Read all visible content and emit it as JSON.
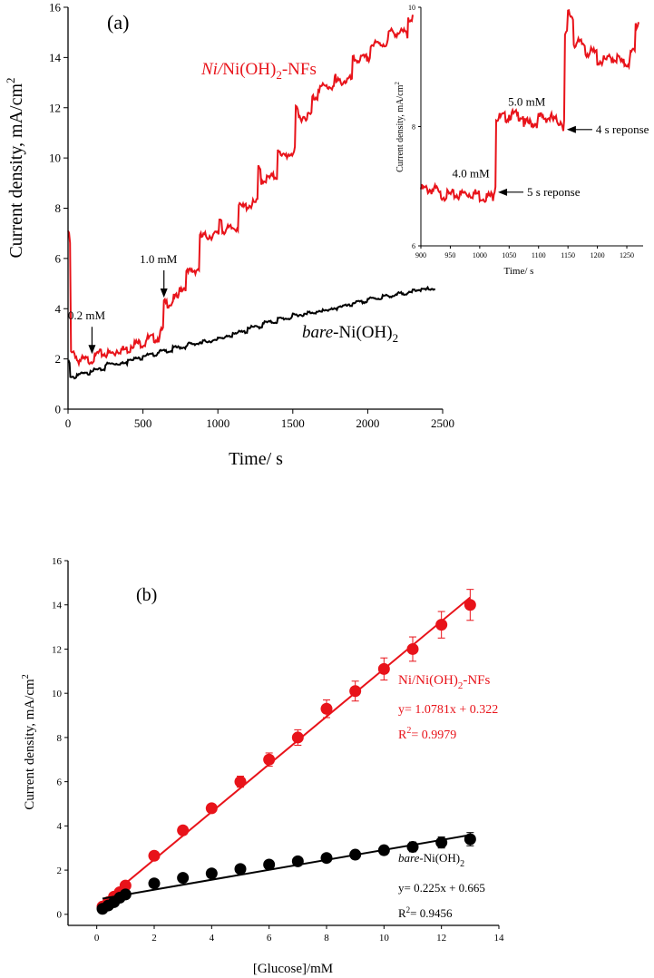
{
  "colors": {
    "red": "#e8131a",
    "black": "#000000"
  },
  "chart_data": [
    {
      "type": "line",
      "panel_label": "(a)",
      "xlabel": "Time/ s",
      "ylabel": "Current density, mA/cm",
      "ylabel_sup": "2",
      "xlim": [
        0,
        2500
      ],
      "ylim": [
        0,
        16
      ],
      "xticks": [
        0,
        500,
        1000,
        1500,
        2000,
        2500
      ],
      "yticks": [
        0,
        2,
        4,
        6,
        8,
        10,
        12,
        14,
        16
      ],
      "grid": false,
      "series": [
        {
          "name_italic": "Ni/",
          "name_rest": "Ni(OH)",
          "name_sub": "2",
          "name_tail": "-NFs",
          "color": "#e8131a",
          "steps": [
            [
              0,
              7.1
            ],
            [
              20,
              2.2
            ],
            [
              60,
              1.95
            ],
            [
              160,
              2.0
            ],
            [
              190,
              2.2
            ],
            [
              320,
              2.35
            ],
            [
              420,
              2.6
            ],
            [
              520,
              2.8
            ],
            [
              610,
              3.0
            ],
            [
              640,
              4.2
            ],
            [
              700,
              4.4
            ],
            [
              745,
              4.8
            ],
            [
              790,
              5.4
            ],
            [
              880,
              6.85
            ],
            [
              1010,
              7.6
            ],
            [
              1030,
              7.1
            ],
            [
              1140,
              8.2
            ],
            [
              1150,
              8.0
            ],
            [
              1270,
              9.6
            ],
            [
              1290,
              9.1
            ],
            [
              1400,
              10.4
            ],
            [
              1420,
              10.0
            ],
            [
              1520,
              11.9
            ],
            [
              1540,
              11.6
            ],
            [
              1630,
              12.4
            ],
            [
              1670,
              12.8
            ],
            [
              1780,
              13.2
            ],
            [
              1790,
              13.0
            ],
            [
              1900,
              13.9
            ],
            [
              2020,
              14.5
            ],
            [
              2140,
              15.0
            ],
            [
              2260,
              14.8
            ],
            [
              2270,
              15.6
            ],
            [
              2300,
              15.7
            ]
          ]
        },
        {
          "name_italic": "bare",
          "name_rest": "-Ni(OH)",
          "name_sub": "2",
          "name_tail": "",
          "color": "#000000",
          "steps": [
            [
              0,
              1.9
            ],
            [
              15,
              1.25
            ],
            [
              60,
              1.4
            ],
            [
              150,
              1.55
            ],
            [
              250,
              1.8
            ],
            [
              400,
              2.0
            ],
            [
              500,
              2.15
            ],
            [
              600,
              2.3
            ],
            [
              700,
              2.45
            ],
            [
              800,
              2.6
            ],
            [
              900,
              2.7
            ],
            [
              1000,
              2.85
            ],
            [
              1100,
              3.05
            ],
            [
              1200,
              3.25
            ],
            [
              1300,
              3.45
            ],
            [
              1400,
              3.6
            ],
            [
              1500,
              3.75
            ],
            [
              1600,
              3.85
            ],
            [
              1700,
              3.95
            ],
            [
              1800,
              4.1
            ],
            [
              1900,
              4.25
            ],
            [
              2000,
              4.4
            ],
            [
              2100,
              4.5
            ],
            [
              2200,
              4.6
            ],
            [
              2300,
              4.75
            ],
            [
              2400,
              4.8
            ],
            [
              2450,
              4.75
            ]
          ]
        }
      ],
      "annotations": [
        {
          "text": "0.2 mM",
          "x": 160,
          "y": 2.05
        },
        {
          "text": "1.0 mM",
          "x": 640,
          "y": 4.3
        }
      ],
      "inset": {
        "xlabel": "Time/ s",
        "ylabel": "Current density, mA/cm",
        "ylabel_sup": "2",
        "xlim": [
          900,
          1270
        ],
        "ylim": [
          6,
          10
        ],
        "xticks": [
          900,
          950,
          1000,
          1050,
          1100,
          1150,
          1200,
          1250
        ],
        "yticks": [
          6,
          8,
          10
        ],
        "steps": [
          [
            900,
            6.95
          ],
          [
            930,
            6.85
          ],
          [
            970,
            6.88
          ],
          [
            1000,
            6.82
          ],
          [
            1024,
            6.92
          ],
          [
            1028,
            8.15
          ],
          [
            1050,
            8.2
          ],
          [
            1075,
            8.05
          ],
          [
            1100,
            8.15
          ],
          [
            1125,
            8.1
          ],
          [
            1142,
            7.97
          ],
          [
            1145,
            9.5
          ],
          [
            1150,
            9.9
          ],
          [
            1160,
            9.4
          ],
          [
            1180,
            9.25
          ],
          [
            1200,
            9.1
          ],
          [
            1220,
            9.15
          ],
          [
            1240,
            9.05
          ],
          [
            1255,
            9.2
          ],
          [
            1265,
            9.7
          ],
          [
            1270,
            9.75
          ]
        ],
        "labels": [
          {
            "text": "4.0 mM",
            "x": 985,
            "y": 7.15
          },
          {
            "text": "5.0 mM",
            "x": 1080,
            "y": 8.35
          }
        ],
        "arrows": [
          {
            "text": "5 s reponse",
            "x": 1028,
            "y": 6.9
          },
          {
            "text": "4 s reponse",
            "x": 1145,
            "y": 7.95
          }
        ]
      }
    },
    {
      "type": "scatter",
      "panel_label": "(b)",
      "xlabel": "[Glucose]/mM",
      "ylabel": "Current density, mA/cm",
      "ylabel_sup": "2",
      "xlim": [
        -1,
        14
      ],
      "ylim": [
        -0.5,
        16
      ],
      "xticks": [
        0,
        2,
        4,
        6,
        8,
        10,
        12,
        14
      ],
      "yticks": [
        0,
        2,
        4,
        6,
        8,
        10,
        12,
        14,
        16
      ],
      "grid": false,
      "series": [
        {
          "name": "Ni/Ni(OH)",
          "name_sub": "2",
          "name_tail": "-NFs",
          "color": "#e8131a",
          "x": [
            0.2,
            0.4,
            0.6,
            0.8,
            1,
            2,
            3,
            4,
            5,
            6,
            7,
            8,
            9,
            10,
            11,
            12,
            13
          ],
          "y": [
            0.35,
            0.55,
            0.8,
            1.0,
            1.3,
            2.65,
            3.8,
            4.8,
            6.0,
            7.0,
            8.0,
            9.3,
            10.1,
            11.1,
            12.0,
            13.1,
            14.0
          ],
          "err": [
            0,
            0,
            0,
            0,
            0,
            0,
            0,
            0.15,
            0.25,
            0.3,
            0.35,
            0.4,
            0.45,
            0.5,
            0.55,
            0.6,
            0.7
          ],
          "fit": {
            "slope": 1.0781,
            "intercept": 0.322
          },
          "equation": "y= 1.0781x + 0.322",
          "r2_label": "R",
          "r2_sup": "2",
          "r2_value": "= 0.9979"
        },
        {
          "name": "bare",
          "name_rest": "-Ni(OH)",
          "name_sub": "2",
          "color": "#000000",
          "x": [
            0.2,
            0.4,
            0.6,
            0.8,
            1,
            2,
            3,
            4,
            5,
            6,
            7,
            8,
            9,
            10,
            11,
            12,
            13
          ],
          "y": [
            0.25,
            0.4,
            0.55,
            0.75,
            0.9,
            1.4,
            1.65,
            1.85,
            2.05,
            2.25,
            2.4,
            2.55,
            2.7,
            2.9,
            3.05,
            3.25,
            3.4
          ],
          "err": [
            0,
            0,
            0,
            0,
            0,
            0,
            0,
            0,
            0,
            0.1,
            0.12,
            0.15,
            0.18,
            0.2,
            0.22,
            0.25,
            0.3
          ],
          "fit": {
            "slope": 0.225,
            "intercept": 0.665
          },
          "equation": "y= 0.225x + 0.665",
          "r2_label": "R",
          "r2_sup": "2",
          "r2_value": "= 0.9456"
        }
      ]
    }
  ]
}
